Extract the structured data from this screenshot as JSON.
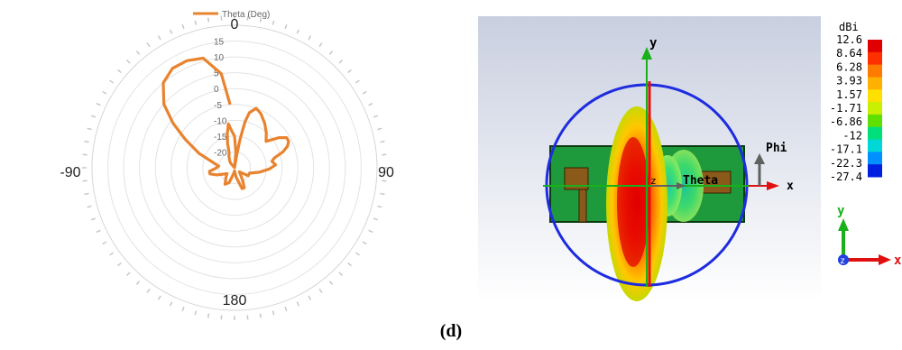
{
  "chart_data": [
    {
      "type": "polar-line",
      "legend": {
        "entries": [
          "Theta (Deg)"
        ],
        "placement": "top"
      },
      "series": [
        {
          "name": "Theta (Deg)",
          "color": "#E8832F",
          "angles_deg": [
            -50,
            -40,
            -32,
            -26,
            -20,
            -16,
            -12,
            -8,
            -5,
            0,
            5,
            8,
            10,
            11,
            12,
            13,
            15,
            20,
            26,
            34,
            42,
            50,
            56,
            60,
            64,
            68,
            72,
            76,
            80,
            86,
            92,
            100,
            110,
            120,
            130,
            140,
            148,
            154,
            160,
            170,
            180,
            190,
            200,
            210,
            222,
            232,
            240,
            248,
            256,
            262,
            268,
            276,
            284,
            292,
            300,
            306,
            312,
            320,
            328,
            336,
            344,
            352,
            356
          ],
          "values": [
            -25,
            -23,
            -22,
            -21,
            -20,
            -17,
            -14,
            -11,
            -13,
            -15,
            -20,
            -25,
            -21,
            -16,
            -13,
            -10,
            -7,
            -5,
            -6,
            -8,
            -10,
            -12,
            -8,
            -6,
            -6,
            -7,
            -9,
            -12,
            -13,
            -12,
            -14,
            -17,
            -20,
            -20,
            -23,
            -22,
            -20,
            -18,
            -18,
            -22,
            -24,
            -23,
            -20,
            -19,
            -21,
            -22,
            -21,
            -19,
            -17,
            -17,
            -19,
            -20,
            -18,
            -13,
            -7,
            -1,
            5,
            10,
            12,
            12,
            11,
            5,
            -5
          ]
        }
      ],
      "radial_axis": {
        "min": -25,
        "max": 20,
        "ticks": [
          -20,
          -15,
          -10,
          -5,
          0,
          5,
          10,
          15
        ],
        "tick_labels": [
          "-20",
          "-15",
          "-10",
          "-5",
          "0",
          "5",
          "10",
          "15"
        ]
      },
      "angular_axis": {
        "labels": [
          {
            "text": "0",
            "angle": 0
          },
          {
            "text": "90",
            "angle": 90
          },
          {
            "text": "180",
            "angle": 180
          },
          {
            "text": "-90",
            "angle": 270
          }
        ]
      },
      "grid": true
    },
    {
      "type": "heatmap",
      "colorbar": {
        "unit": "dBi",
        "labels": [
          "12.6",
          "8.64",
          "6.28",
          "3.93",
          "1.57",
          "-1.71",
          "-6.86",
          "-12",
          "-17.1",
          "-22.3",
          "-27.4"
        ],
        "colors": [
          "#E00000",
          "#FF3000",
          "#FF7A00",
          "#FFB000",
          "#FFE000",
          "#C8F000",
          "#60E000",
          "#00E07A",
          "#00D8D8",
          "#0090FF",
          "#0020E0"
        ]
      },
      "axis_labels": {
        "y": "y",
        "x": "x",
        "phi": "Phi",
        "theta": "Theta",
        "z": "z"
      },
      "triad_labels": {
        "y": "y",
        "x": "x",
        "z": "z"
      }
    }
  ],
  "caption": "(d)"
}
